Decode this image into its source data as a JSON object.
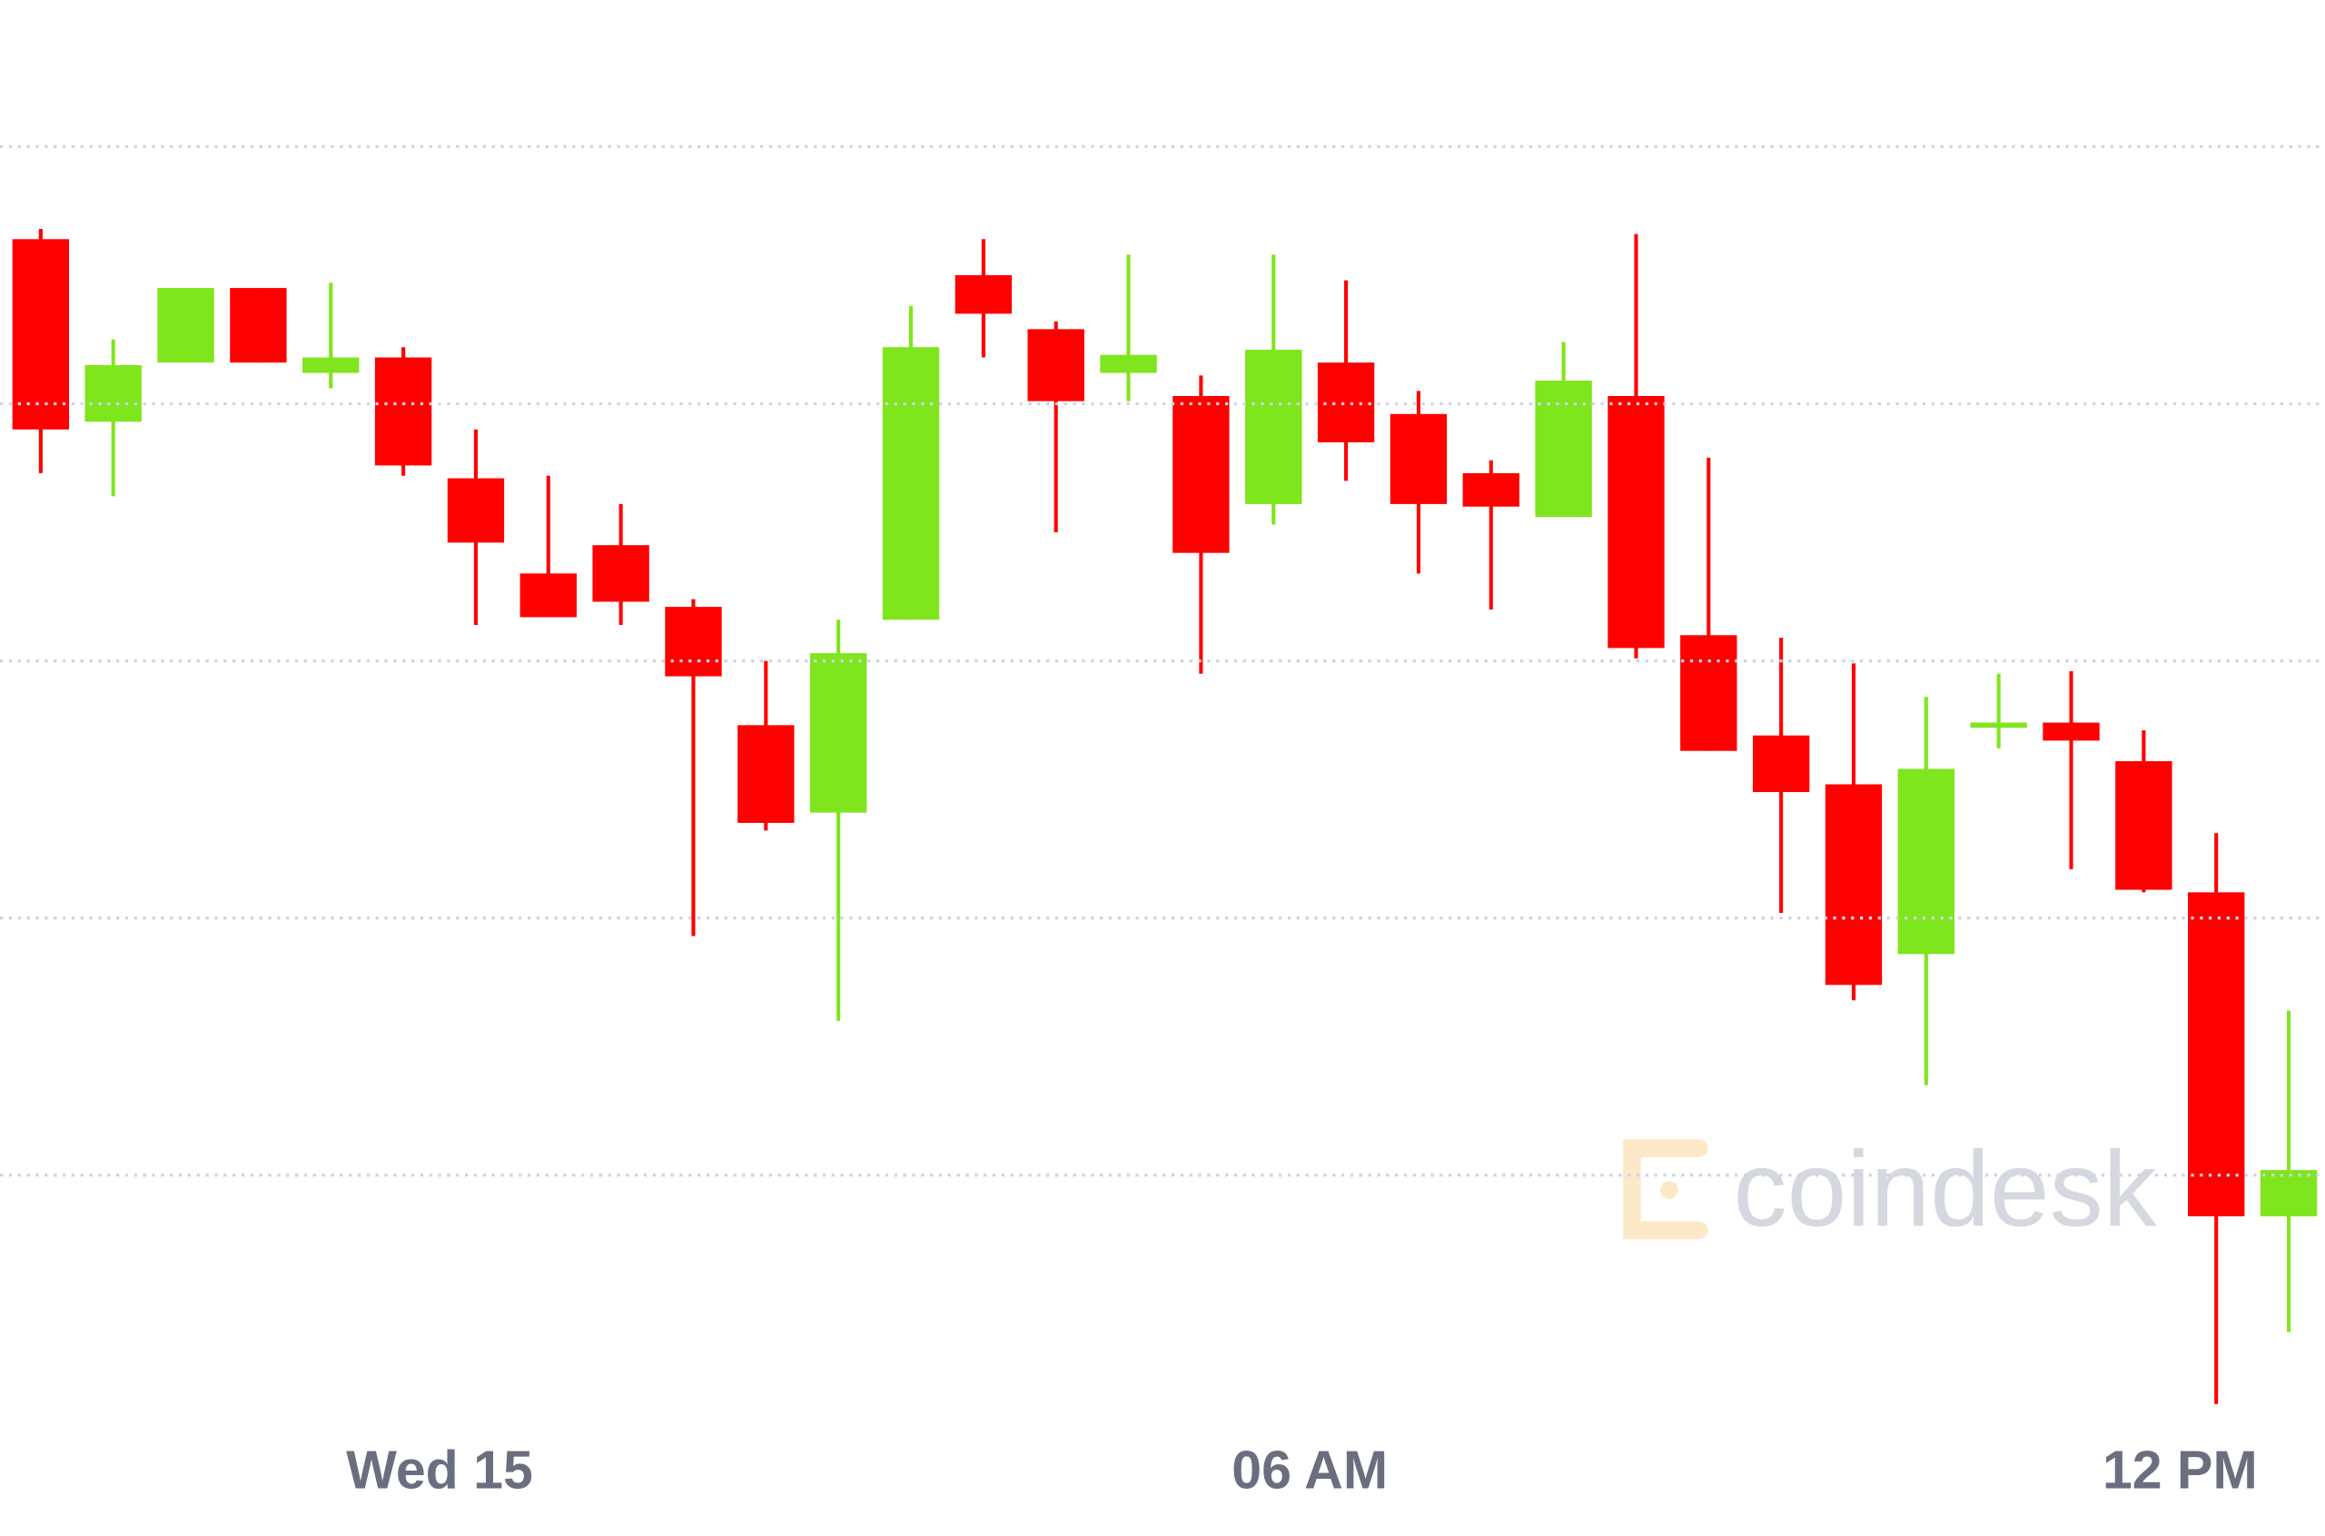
{
  "chart_data": {
    "type": "candlestick",
    "categories": [
      null,
      null,
      null,
      null,
      null,
      null,
      "Wed 15",
      null,
      null,
      null,
      null,
      null,
      null,
      null,
      null,
      null,
      null,
      null,
      "06 AM",
      null,
      null,
      null,
      null,
      null,
      null,
      null,
      null,
      null,
      null,
      null,
      "12 PM",
      null
    ],
    "open": [
      464,
      393,
      416,
      445,
      412,
      418,
      371,
      334,
      345,
      321,
      275,
      241,
      316,
      450,
      429,
      412,
      403,
      361,
      416,
      396,
      373,
      356,
      403,
      310,
      271,
      252,
      186,
      274,
      276,
      261,
      210,
      84
    ],
    "high": [
      468,
      425,
      445,
      445,
      447,
      422,
      390,
      372,
      361,
      324,
      300,
      316,
      438,
      464,
      432,
      458,
      411,
      458,
      448,
      405,
      378,
      424,
      466,
      379,
      309,
      299,
      286,
      295,
      296,
      273,
      233,
      164
    ],
    "low": [
      373,
      364,
      416,
      416,
      406,
      372,
      314,
      317,
      314,
      193,
      234,
      160,
      316,
      418,
      350,
      401,
      295,
      353,
      370,
      334,
      320,
      356,
      301,
      265,
      202,
      168,
      135,
      266,
      219,
      210,
      11,
      39
    ],
    "close": [
      390,
      415,
      445,
      416,
      418,
      376,
      346,
      317,
      323,
      294,
      237,
      303,
      422,
      435,
      401,
      419,
      342,
      421,
      385,
      361,
      360,
      409,
      305,
      265,
      249,
      174,
      258,
      276,
      269,
      211,
      84,
      102
    ],
    "up_color": "#7fe51c",
    "down_color": "#ff0000",
    "ylim": [
      0,
      557
    ],
    "yticks": [
      100,
      200,
      300,
      400,
      500
    ],
    "grid": true,
    "watermark": "coindesk"
  }
}
